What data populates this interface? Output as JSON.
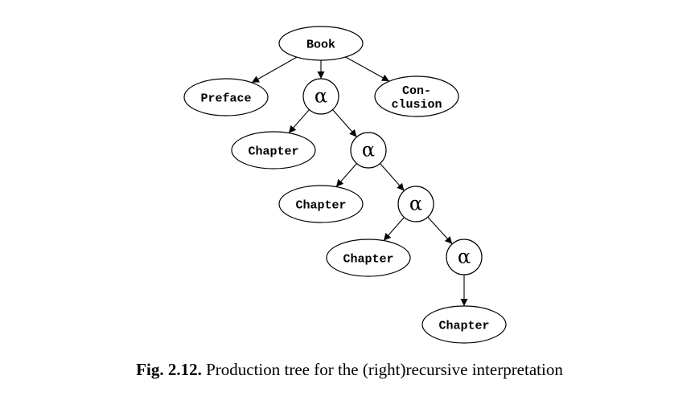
{
  "diagram": {
    "nodes": [
      {
        "id": "book",
        "label": "Book",
        "shape": "ellipse"
      },
      {
        "id": "preface",
        "label": "Preface",
        "shape": "ellipse"
      },
      {
        "id": "alpha1",
        "label": "α",
        "shape": "circle"
      },
      {
        "id": "conclusion",
        "label": "Con-\nclusion",
        "shape": "ellipse"
      },
      {
        "id": "chapter1",
        "label": "Chapter",
        "shape": "ellipse"
      },
      {
        "id": "alpha2",
        "label": "α",
        "shape": "circle"
      },
      {
        "id": "chapter2",
        "label": "Chapter",
        "shape": "ellipse"
      },
      {
        "id": "alpha3",
        "label": "α",
        "shape": "circle"
      },
      {
        "id": "chapter3",
        "label": "Chapter",
        "shape": "ellipse"
      },
      {
        "id": "alpha4",
        "label": "α",
        "shape": "circle"
      },
      {
        "id": "chapter4",
        "label": "Chapter",
        "shape": "ellipse"
      }
    ],
    "edges": [
      {
        "from": "book",
        "to": "preface"
      },
      {
        "from": "book",
        "to": "alpha1"
      },
      {
        "from": "book",
        "to": "conclusion"
      },
      {
        "from": "alpha1",
        "to": "chapter1"
      },
      {
        "from": "alpha1",
        "to": "alpha2"
      },
      {
        "from": "alpha2",
        "to": "chapter2"
      },
      {
        "from": "alpha2",
        "to": "alpha3"
      },
      {
        "from": "alpha3",
        "to": "chapter3"
      },
      {
        "from": "alpha3",
        "to": "alpha4"
      },
      {
        "from": "alpha4",
        "to": "chapter4"
      }
    ]
  },
  "caption": {
    "figure_number": "Fig. 2.12.",
    "text": "Production tree for the (right)recursive interpretation"
  }
}
